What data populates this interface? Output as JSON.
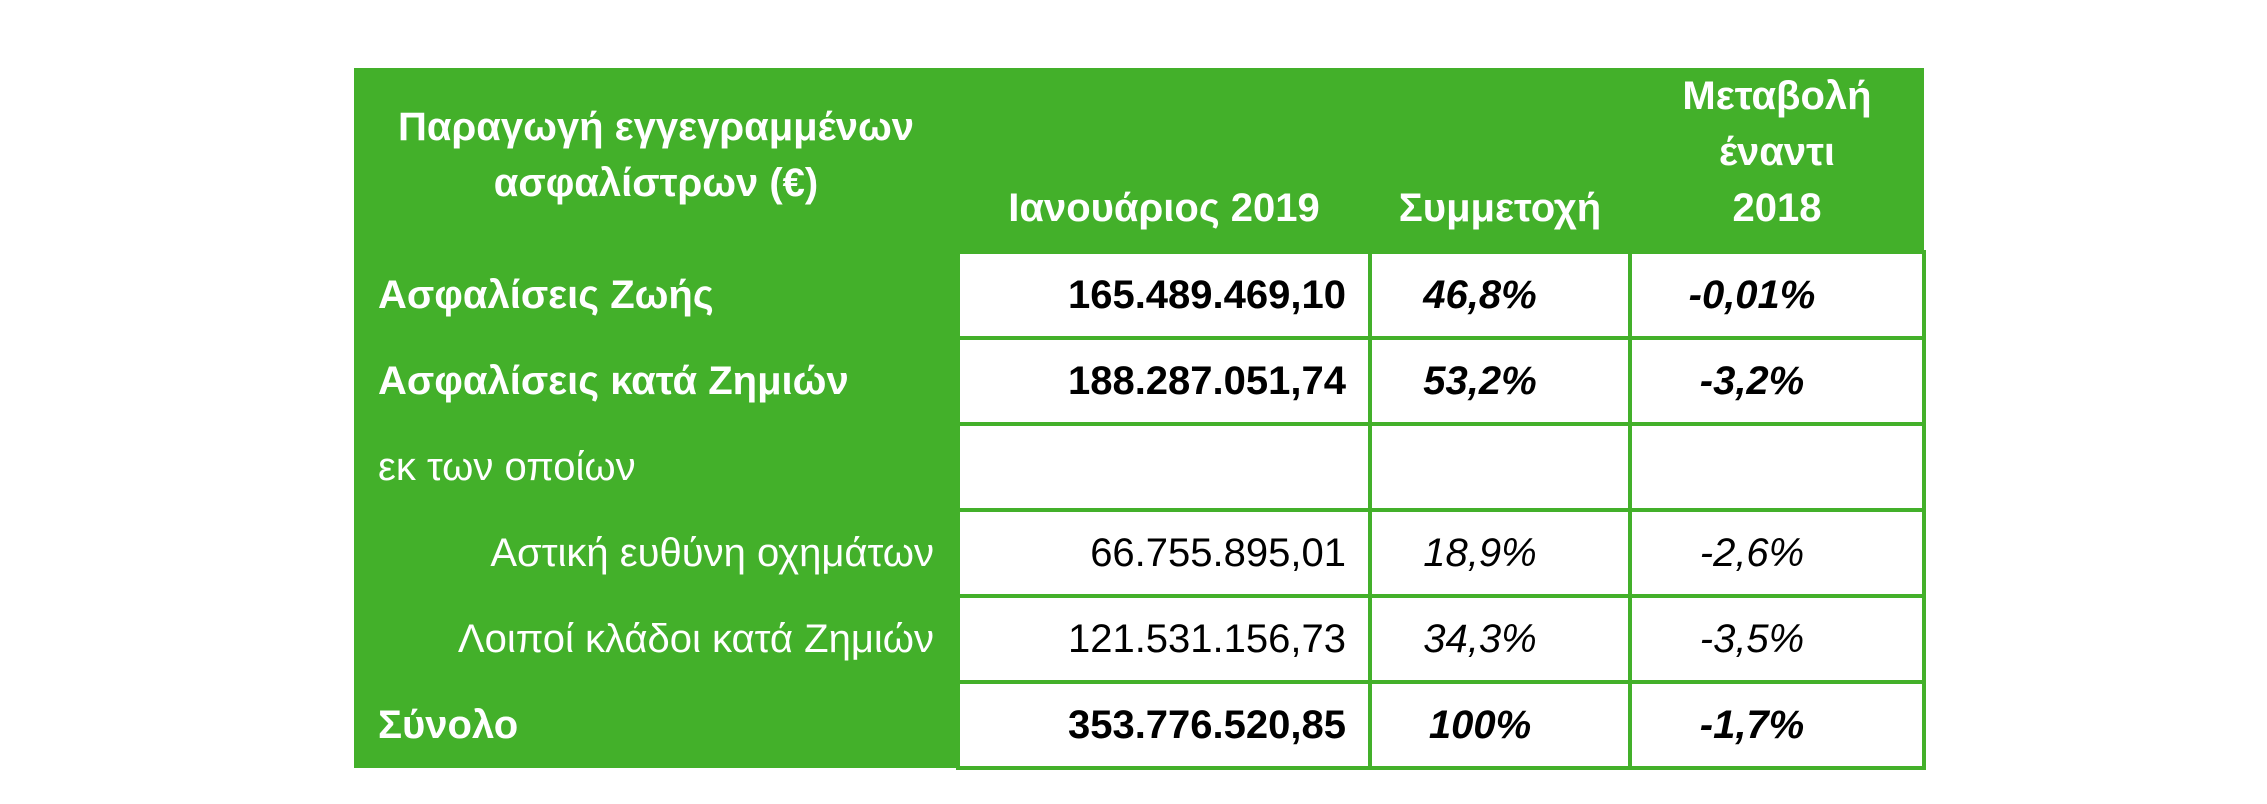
{
  "header": {
    "label": "Παραγωγή εγγεγραμμένων ασφαλίστρων (€)",
    "col_value": "Ιανουάριος 2019",
    "col_share": "Συμμετοχή",
    "col_change": "Μεταβολή έναντι 2018"
  },
  "rows": [
    {
      "label": "Ασφαλίσεις Ζωής",
      "value": "165.489.469,10",
      "share": "46,8%",
      "change": "-0,01%"
    },
    {
      "label": "Ασφαλίσεις κατά Ζημιών",
      "value": "188.287.051,74",
      "share": "53,2%",
      "change": "-3,2%"
    },
    {
      "label": "εκ των οποίων",
      "value": "",
      "share": "",
      "change": ""
    },
    {
      "label": "Αστική ευθύνη οχημάτων",
      "value": "66.755.895,01",
      "share": "18,9%",
      "change": "-2,6%"
    },
    {
      "label": "Λοιποί κλάδοι κατά Ζημιών",
      "value": "121.531.156,73",
      "share": "34,3%",
      "change": "-3,5%"
    },
    {
      "label": "Σύνολο",
      "value": "353.776.520,85",
      "share": "100%",
      "change": "-1,7%"
    }
  ],
  "colors": {
    "accent": "#43b02a",
    "cell_background": "#ffffff"
  }
}
